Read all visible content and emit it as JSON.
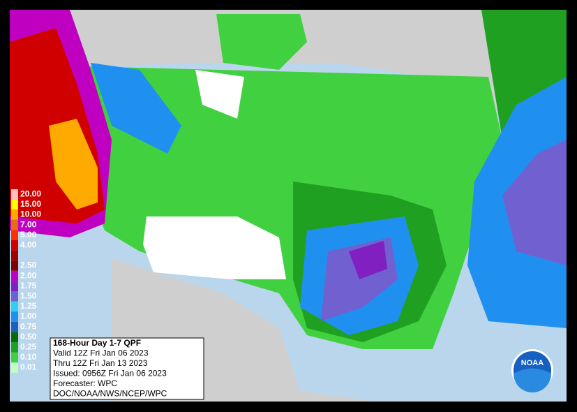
{
  "legend": {
    "items": [
      {
        "label": "20.00",
        "color": "#ffc0c0"
      },
      {
        "label": "15.00",
        "color": "#ffff00"
      },
      {
        "label": "10.00",
        "color": "#ffaa00"
      },
      {
        "label": "7.00",
        "color": "#e07010"
      },
      {
        "label": "5.00",
        "color": "#ff3000"
      },
      {
        "label": "4.00",
        "color": "#d00000"
      },
      {
        "label": null,
        "color": "#a00000"
      },
      {
        "label": "2.50",
        "color": "#800000"
      },
      {
        "label": "2.00",
        "color": "#c000c0"
      },
      {
        "label": "1.75",
        "color": "#8020c0"
      },
      {
        "label": "1.50",
        "color": "#7060d0"
      },
      {
        "label": "1.25",
        "color": "#30d0f0"
      },
      {
        "label": "1.00",
        "color": "#2090f0"
      },
      {
        "label": "0.75",
        "color": "#1e5fc0"
      },
      {
        "label": "0.50",
        "color": "#0a6a0a"
      },
      {
        "label": "0.25",
        "color": "#20a020"
      },
      {
        "label": "0.10",
        "color": "#40d040"
      },
      {
        "label": "0.01",
        "color": "#c0ffc0"
      }
    ]
  },
  "info": {
    "lines": [
      "168-Hour Day 1-7 QPF",
      "Valid 12Z Fri Jan 06 2023",
      "Thru 12Z Fri Jan 13 2023",
      "Issued: 0956Z Fri Jan 06 2023",
      "Forecaster: WPC",
      "DOC/NOAA/NWS/NCEP/WPC"
    ]
  },
  "logo": {
    "text": "NOAA"
  }
}
